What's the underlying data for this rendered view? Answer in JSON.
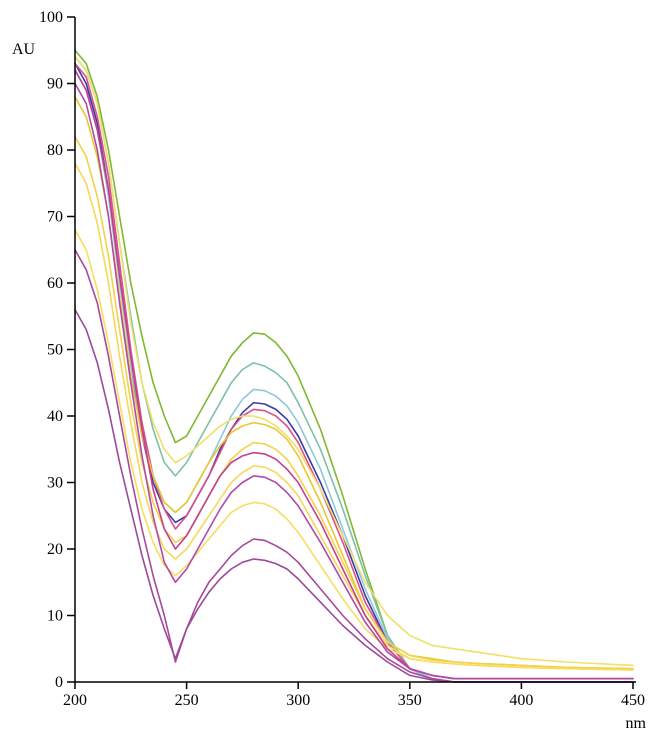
{
  "chart_data": {
    "type": "line",
    "title": "",
    "xlabel": "nm",
    "ylabel": "AU",
    "xlim": [
      200,
      450
    ],
    "ylim": [
      0,
      100
    ],
    "xticks": [
      "200",
      "250",
      "300",
      "350",
      "400",
      "450"
    ],
    "yticks": [
      "0",
      "10",
      "20",
      "30",
      "40",
      "50",
      "60",
      "70",
      "80",
      "90",
      "100"
    ],
    "grid": false,
    "legend": "none",
    "series": [
      {
        "color": "#7fb832",
        "x": [
          200,
          205,
          210,
          215,
          220,
          225,
          230,
          235,
          240,
          245,
          250,
          255,
          260,
          265,
          270,
          275,
          280,
          285,
          290,
          295,
          300,
          310,
          320,
          330,
          340,
          350,
          360,
          370,
          380,
          400,
          420,
          450
        ],
        "values": [
          95,
          93,
          88,
          80,
          70,
          60,
          52,
          45,
          40,
          36,
          37,
          40,
          43,
          46,
          49,
          51,
          52.5,
          52.3,
          51,
          49,
          46,
          38,
          28,
          17,
          7,
          2,
          0.5,
          0,
          0,
          0,
          0,
          0
        ]
      },
      {
        "color": "#7dc0a8",
        "x": [
          200,
          205,
          210,
          215,
          220,
          225,
          230,
          235,
          240,
          245,
          250,
          255,
          260,
          265,
          270,
          275,
          280,
          285,
          290,
          295,
          300,
          310,
          320,
          330,
          340,
          350,
          360,
          370,
          380,
          400,
          420,
          450
        ],
        "values": [
          94,
          92,
          87,
          78,
          66,
          55,
          45,
          38,
          33,
          31,
          33,
          36,
          39,
          42,
          45,
          47,
          48,
          47.5,
          46.5,
          45,
          42,
          35,
          26,
          16,
          7,
          2,
          0.5,
          0,
          0,
          0,
          0,
          0
        ]
      },
      {
        "color": "#3a3aa8",
        "x": [
          200,
          205,
          210,
          215,
          220,
          225,
          230,
          235,
          240,
          245,
          250,
          255,
          260,
          265,
          270,
          275,
          280,
          285,
          290,
          295,
          300,
          310,
          320,
          330,
          340,
          350,
          360,
          370,
          380,
          400,
          420,
          450
        ],
        "values": [
          93,
          90,
          84,
          74,
          61,
          48,
          37,
          30,
          26,
          24,
          25,
          28,
          31,
          35,
          38,
          40.5,
          42,
          41.8,
          41,
          39.5,
          37,
          30,
          22,
          13,
          6,
          2,
          0.5,
          0,
          0,
          0,
          0,
          0
        ]
      },
      {
        "color": "#8ec8dc",
        "x": [
          200,
          205,
          210,
          215,
          220,
          225,
          230,
          235,
          240,
          245,
          250,
          255,
          260,
          265,
          270,
          275,
          280,
          285,
          290,
          295,
          300,
          310,
          320,
          330,
          340,
          350,
          360,
          370,
          380,
          400,
          420,
          450
        ],
        "values": [
          92,
          89,
          83,
          73,
          60,
          48,
          38,
          31,
          27,
          25.5,
          27,
          30,
          33,
          36.5,
          40,
          42.5,
          44,
          43.8,
          43,
          41.5,
          39,
          32,
          23,
          14,
          6.5,
          2,
          0.5,
          0,
          0,
          0,
          0,
          0
        ]
      },
      {
        "color": "#d9508a",
        "x": [
          200,
          205,
          210,
          215,
          220,
          225,
          230,
          235,
          240,
          245,
          250,
          255,
          260,
          265,
          270,
          275,
          280,
          285,
          290,
          295,
          300,
          310,
          320,
          330,
          340,
          350,
          360,
          370,
          380,
          400,
          420,
          450
        ],
        "values": [
          93,
          91,
          85,
          76,
          63,
          50,
          39,
          31,
          26,
          23,
          25,
          28,
          31,
          34.5,
          38,
          40,
          41,
          40.8,
          40,
          38.5,
          36,
          29,
          21,
          12,
          6,
          2,
          1,
          0.5,
          0.5,
          0.5,
          0.5,
          0.5
        ]
      },
      {
        "color": "#f0e06a",
        "x": [
          200,
          205,
          210,
          215,
          220,
          225,
          230,
          235,
          240,
          245,
          250,
          255,
          260,
          265,
          270,
          275,
          280,
          285,
          290,
          295,
          300,
          310,
          320,
          330,
          340,
          350,
          360,
          370,
          380,
          400,
          420,
          450
        ],
        "values": [
          94,
          92,
          87,
          78,
          66,
          54,
          45,
          39,
          35,
          33,
          34,
          35.5,
          37,
          38.5,
          39.5,
          40,
          40,
          39.5,
          38.5,
          37,
          35,
          29,
          22,
          15,
          10,
          7,
          5.5,
          5,
          4.5,
          3.5,
          3,
          2.5
        ]
      },
      {
        "color": "#e8c832",
        "x": [
          200,
          205,
          210,
          215,
          220,
          225,
          230,
          235,
          240,
          245,
          250,
          255,
          260,
          265,
          270,
          275,
          280,
          285,
          290,
          295,
          300,
          310,
          320,
          330,
          340,
          350,
          360,
          370,
          380,
          400,
          420,
          450
        ],
        "values": [
          88,
          85,
          79,
          70,
          58,
          46,
          37,
          31,
          27,
          25.5,
          27,
          30,
          33,
          35.5,
          37.5,
          38.5,
          39,
          38.7,
          38,
          36.5,
          34,
          27,
          19,
          11,
          6,
          4,
          3.5,
          3,
          2.8,
          2.5,
          2.2,
          2
        ]
      },
      {
        "color": "#f2d24a",
        "x": [
          200,
          205,
          210,
          215,
          220,
          225,
          230,
          235,
          240,
          245,
          250,
          255,
          260,
          265,
          270,
          275,
          280,
          285,
          290,
          295,
          300,
          310,
          320,
          330,
          340,
          350,
          360,
          370,
          380,
          400,
          420,
          450
        ],
        "values": [
          82,
          79,
          73,
          64,
          53,
          42,
          33,
          27,
          23,
          21,
          22,
          25,
          28,
          31,
          33.5,
          35,
          36,
          35.8,
          35,
          33.5,
          31,
          25,
          18,
          11,
          6,
          4,
          3.3,
          3,
          2.8,
          2.5,
          2.2,
          2
        ]
      },
      {
        "color": "#f5d85a",
        "x": [
          200,
          205,
          210,
          215,
          220,
          225,
          230,
          235,
          240,
          245,
          250,
          255,
          260,
          265,
          270,
          275,
          280,
          285,
          290,
          295,
          300,
          310,
          320,
          330,
          340,
          350,
          360,
          370,
          380,
          400,
          420,
          450
        ],
        "values": [
          78,
          75,
          69,
          60,
          49,
          39,
          30,
          24,
          20,
          18.5,
          20,
          22.5,
          25,
          27.5,
          30,
          31.5,
          32.5,
          32.3,
          31.5,
          30,
          28,
          22,
          16,
          10,
          5.5,
          3.5,
          3,
          2.7,
          2.5,
          2.2,
          2,
          1.8
        ]
      },
      {
        "color": "#f7de60",
        "x": [
          200,
          205,
          210,
          215,
          220,
          225,
          230,
          235,
          240,
          245,
          250,
          255,
          260,
          265,
          270,
          275,
          280,
          285,
          290,
          295,
          300,
          310,
          320,
          330,
          340,
          350,
          360,
          370,
          380,
          400,
          420,
          450
        ],
        "values": [
          68,
          65,
          59,
          51,
          42,
          33,
          26,
          21,
          17.5,
          16,
          17.5,
          19.5,
          21.5,
          23.5,
          25.5,
          26.5,
          27,
          26.8,
          26,
          24.5,
          22.5,
          17.5,
          12.5,
          8,
          5,
          3.5,
          3,
          2.7,
          2.5,
          2.2,
          2,
          1.8
        ]
      },
      {
        "color": "#c2408e",
        "x": [
          200,
          205,
          210,
          215,
          220,
          225,
          230,
          235,
          240,
          245,
          250,
          255,
          260,
          265,
          270,
          275,
          280,
          285,
          290,
          295,
          300,
          310,
          320,
          330,
          340,
          350,
          360,
          370,
          380,
          400,
          420,
          450
        ],
        "values": [
          92,
          89,
          83,
          74,
          61,
          49,
          38,
          29,
          23,
          20,
          22,
          25,
          28,
          31,
          33,
          34,
          34.5,
          34.3,
          33.5,
          32,
          30,
          24,
          17,
          10,
          5,
          2,
          1,
          0.5,
          0.5,
          0.5,
          0.5,
          0.5
        ]
      },
      {
        "color": "#b04aa8",
        "x": [
          200,
          205,
          210,
          215,
          220,
          225,
          230,
          235,
          240,
          245,
          250,
          255,
          260,
          265,
          270,
          275,
          280,
          285,
          290,
          295,
          300,
          310,
          320,
          330,
          340,
          350,
          360,
          370,
          380,
          400,
          420,
          450
        ],
        "values": [
          90,
          87,
          80,
          70,
          57,
          45,
          34,
          25,
          18,
          15,
          17,
          20,
          23,
          26,
          28.5,
          30,
          31,
          30.8,
          30,
          28.5,
          26.5,
          21,
          15,
          9,
          4.5,
          2,
          1,
          0.5,
          0.5,
          0.5,
          0.5,
          0.5
        ]
      },
      {
        "color": "#a8489a",
        "x": [
          200,
          205,
          210,
          215,
          220,
          225,
          230,
          235,
          240,
          245,
          250,
          255,
          260,
          265,
          270,
          275,
          280,
          285,
          290,
          295,
          300,
          310,
          320,
          330,
          340,
          350,
          360,
          370,
          380,
          400,
          420,
          450
        ],
        "values": [
          65,
          62,
          57,
          49,
          40,
          31,
          23,
          16,
          10,
          3,
          8,
          12,
          15,
          17,
          19,
          20.5,
          21.5,
          21.3,
          20.5,
          19.5,
          18,
          14,
          10,
          6.5,
          3.5,
          1.5,
          0.5,
          0,
          0,
          0,
          0,
          0
        ]
      },
      {
        "color": "#9a4a9a",
        "x": [
          200,
          205,
          210,
          215,
          220,
          225,
          230,
          235,
          240,
          245,
          250,
          255,
          260,
          265,
          270,
          275,
          280,
          285,
          290,
          295,
          300,
          310,
          320,
          330,
          340,
          350,
          360,
          370,
          380,
          400,
          420,
          450
        ],
        "values": [
          56,
          53,
          48,
          41,
          33,
          26,
          19,
          13,
          8,
          3.5,
          8,
          11,
          13.5,
          15.5,
          17,
          18,
          18.5,
          18.3,
          17.8,
          17,
          15.5,
          12,
          8.5,
          5.5,
          3,
          1,
          0.3,
          0,
          0,
          0,
          0,
          0
        ]
      }
    ]
  }
}
